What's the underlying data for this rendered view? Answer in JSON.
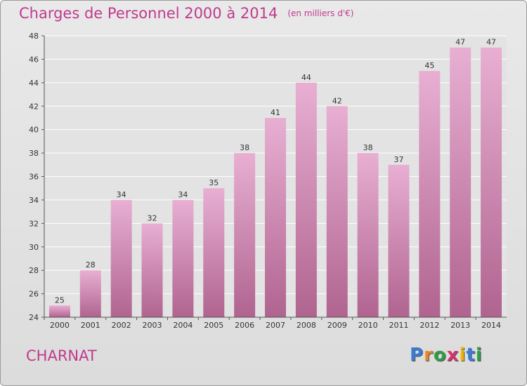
{
  "title": "Charges de Personnel 2000 à 2014",
  "subtitle": "(en milliers d'€)",
  "commune": "CHARNAT",
  "logo": {
    "letters": [
      "P",
      "r",
      "o",
      "x",
      "i",
      "t",
      "i"
    ],
    "colors": [
      "#3a7bd5",
      "#e8862a",
      "#2f9e44",
      "#d6336c",
      "#f0b400",
      "#3a7bd5",
      "#2f9e44"
    ]
  },
  "colors": {
    "bar_top": "#e8afd3",
    "bar_bottom": "#b0648f",
    "title": "#c03a8e"
  },
  "chart_data": {
    "type": "bar",
    "categories": [
      "2000",
      "2001",
      "2002",
      "2003",
      "2004",
      "2005",
      "2006",
      "2007",
      "2008",
      "2009",
      "2010",
      "2011",
      "2012",
      "2013",
      "2014"
    ],
    "values": [
      25,
      28,
      34,
      32,
      34,
      35,
      38,
      41,
      44,
      42,
      38,
      37,
      45,
      47,
      47
    ],
    "yticks": [
      24,
      26,
      28,
      30,
      32,
      34,
      36,
      38,
      40,
      42,
      44,
      46,
      48
    ],
    "ylim": [
      24,
      48
    ],
    "grid": true
  }
}
